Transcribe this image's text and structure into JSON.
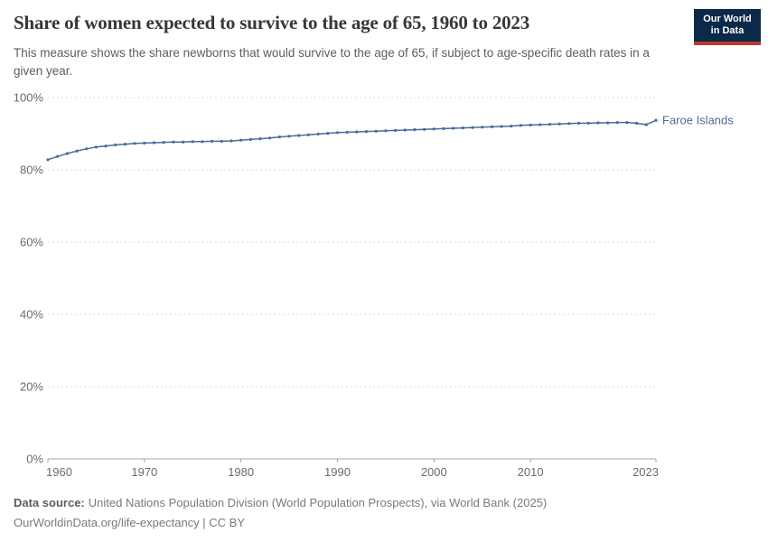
{
  "header": {
    "title": "Share of women expected to survive to the age of 65, 1960 to 2023",
    "subtitle": "This measure shows the share newborns that would survive to the age of 65, if subject to age-specific death rates in a given year.",
    "logo": {
      "line1": "Our World",
      "line2": "in Data",
      "bg": "#0b2948",
      "accent": "#c0362c"
    }
  },
  "chart_data": {
    "type": "line",
    "title": "Share of women expected to survive to the age of 65, 1960 to 2023",
    "xlabel": "",
    "ylabel": "",
    "ylim": [
      0,
      100
    ],
    "yticks": [
      0,
      20,
      40,
      60,
      80,
      100
    ],
    "ytick_suffix": "%",
    "xticks": [
      1960,
      1970,
      1980,
      1990,
      2000,
      2010,
      2023
    ],
    "grid": "horizontal-dashed",
    "legend": "end-of-line-label",
    "x": [
      1960,
      1961,
      1962,
      1963,
      1964,
      1965,
      1966,
      1967,
      1968,
      1969,
      1970,
      1971,
      1972,
      1973,
      1974,
      1975,
      1976,
      1977,
      1978,
      1979,
      1980,
      1981,
      1982,
      1983,
      1984,
      1985,
      1986,
      1987,
      1988,
      1989,
      1990,
      1991,
      1992,
      1993,
      1994,
      1995,
      1996,
      1997,
      1998,
      1999,
      2000,
      2001,
      2002,
      2003,
      2004,
      2005,
      2006,
      2007,
      2008,
      2009,
      2010,
      2011,
      2012,
      2013,
      2014,
      2015,
      2016,
      2017,
      2018,
      2019,
      2020,
      2021,
      2022,
      2023
    ],
    "series": [
      {
        "name": "Faroe Islands",
        "color": "#4c6a9c",
        "values": [
          82.8,
          83.7,
          84.5,
          85.2,
          85.8,
          86.3,
          86.6,
          86.9,
          87.1,
          87.3,
          87.4,
          87.5,
          87.6,
          87.7,
          87.7,
          87.8,
          87.8,
          87.9,
          87.9,
          88.0,
          88.2,
          88.4,
          88.6,
          88.8,
          89.1,
          89.3,
          89.5,
          89.7,
          89.9,
          90.1,
          90.3,
          90.4,
          90.5,
          90.6,
          90.7,
          90.8,
          90.9,
          91.0,
          91.1,
          91.2,
          91.3,
          91.4,
          91.5,
          91.6,
          91.7,
          91.8,
          91.9,
          92.0,
          92.1,
          92.3,
          92.4,
          92.5,
          92.6,
          92.7,
          92.8,
          92.9,
          92.9,
          93.0,
          93.0,
          93.1,
          93.1,
          92.9,
          92.5,
          93.7
        ]
      }
    ]
  },
  "footer": {
    "source_label": "Data source:",
    "source_text": "United Nations Population Division (World Population Prospects), via World Bank (2025)",
    "license_line": "OurWorldinData.org/life-expectancy | CC BY"
  },
  "colors": {
    "grid": "#dadada",
    "axis": "#a5a5a5",
    "tick_text": "#6b6b6b"
  }
}
